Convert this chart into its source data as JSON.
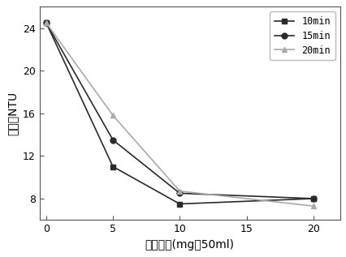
{
  "x": [
    0,
    5,
    10,
    20
  ],
  "series": [
    {
      "label": "10min",
      "y": [
        24.5,
        11.0,
        7.5,
        8.0
      ],
      "color": "#2a2a2a",
      "marker": "s",
      "linestyle": "-"
    },
    {
      "label": "15min",
      "y": [
        24.5,
        13.5,
        8.5,
        8.0
      ],
      "color": "#2a2a2a",
      "marker": "o",
      "linestyle": "-"
    },
    {
      "label": "20min",
      "y": [
        24.5,
        15.8,
        8.7,
        7.3
      ],
      "color": "#aaaaaa",
      "marker": "^",
      "linestyle": "-"
    }
  ],
  "xlabel": "添加量／(mg／50ml)",
  "ylabel": "浊度／NTU",
  "xlim": [
    -0.5,
    22
  ],
  "ylim": [
    6,
    26
  ],
  "yticks": [
    8,
    12,
    16,
    20,
    24
  ],
  "xticks": [
    0,
    5,
    10,
    15,
    20
  ],
  "legend_loc": "upper right",
  "background_color": "#ffffff"
}
